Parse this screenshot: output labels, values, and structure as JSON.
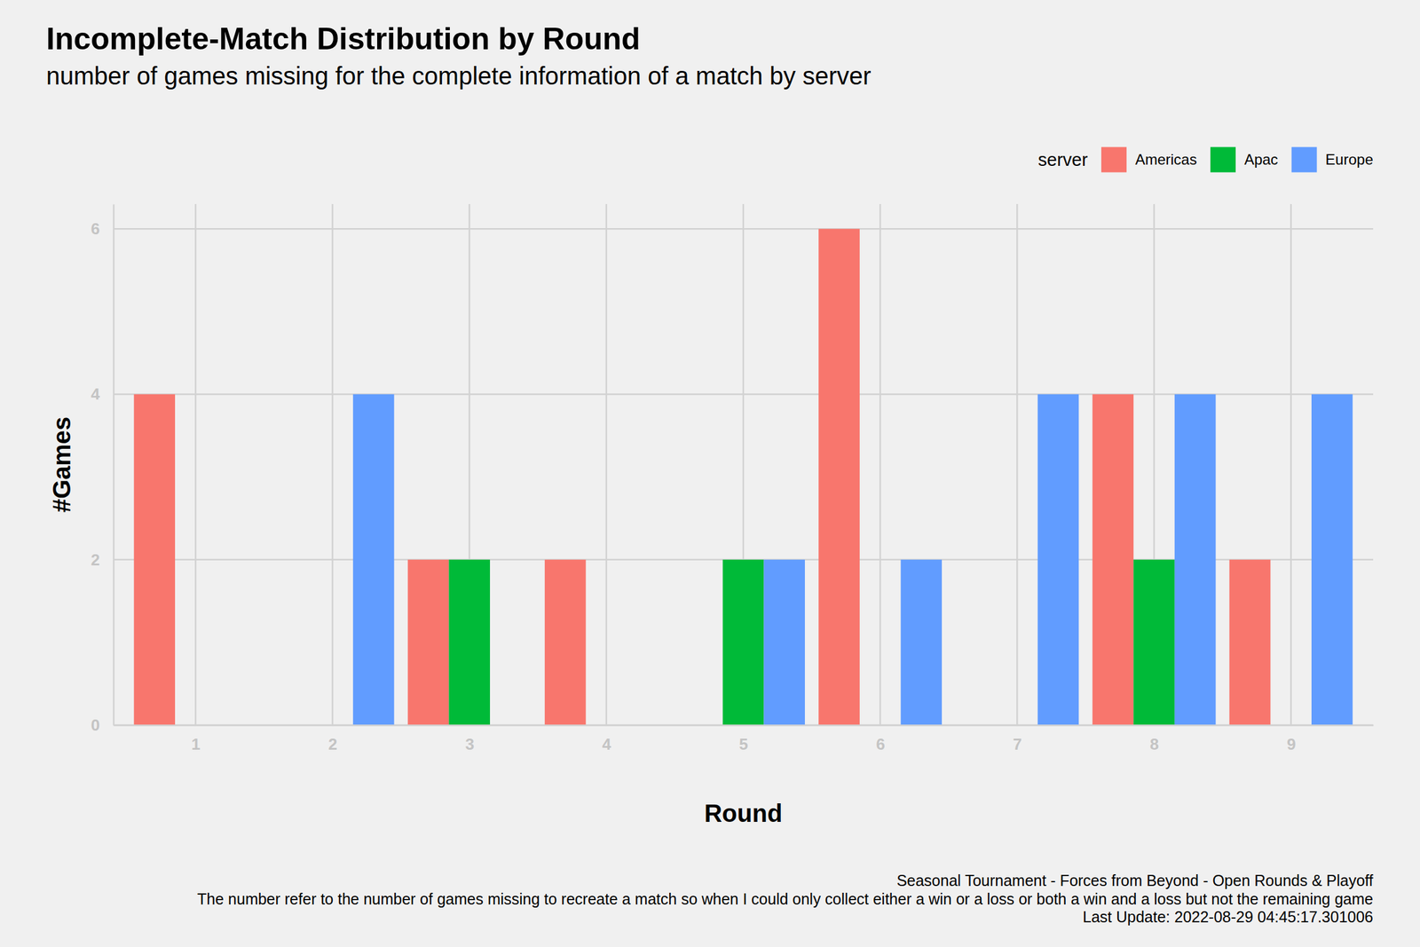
{
  "chart_data": {
    "type": "bar",
    "title": "Incomplete-Match Distribution by Round",
    "subtitle": "number of games missing for the complete information of a match by server",
    "x_label": "Round",
    "y_label": "#Games",
    "categories": [
      "1",
      "2",
      "3",
      "4",
      "5",
      "6",
      "7",
      "8",
      "9"
    ],
    "series": [
      {
        "name": "Americas",
        "color": "#F8766D",
        "values": [
          4,
          null,
          2,
          2,
          null,
          6,
          null,
          4,
          2
        ]
      },
      {
        "name": "Apac",
        "color": "#00BA38",
        "values": [
          null,
          null,
          2,
          null,
          2,
          null,
          null,
          2,
          null
        ]
      },
      {
        "name": "Europe",
        "color": "#619CFF",
        "values": [
          null,
          4,
          null,
          null,
          2,
          2,
          4,
          4,
          4
        ]
      }
    ],
    "ylim": [
      0,
      6.3
    ],
    "yticks": [
      0,
      2,
      4,
      6
    ],
    "grid": true,
    "legend": "top-right",
    "legend_title": "server",
    "caption": [
      "Seasonal Tournament - Forces from Beyond - Open Rounds & Playoff",
      "The number refer to the number of games missing to recreate a match so when I could only collect either a win or a loss or both a win and a loss but not the remaining game",
      "Last Update: 2022-08-29 04:45:17.301006"
    ]
  }
}
